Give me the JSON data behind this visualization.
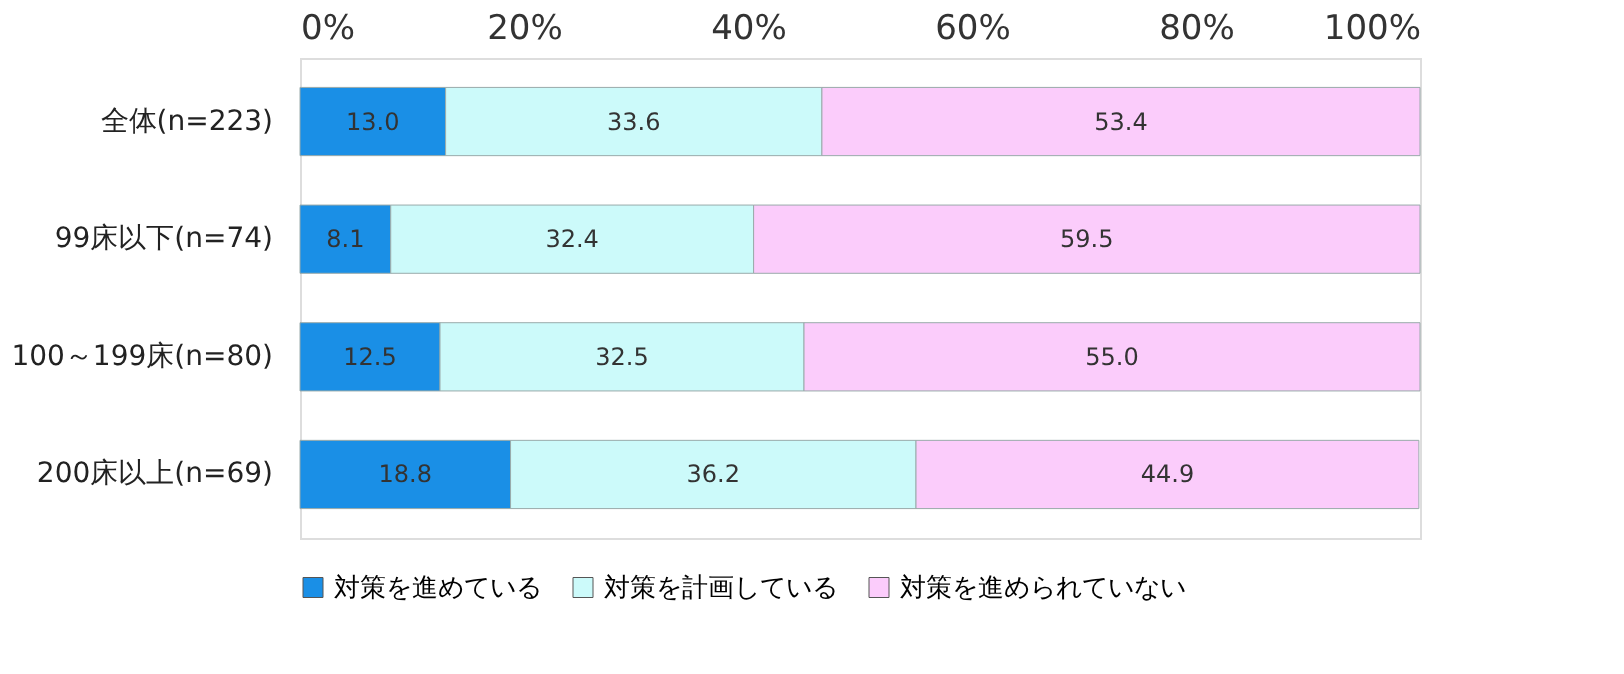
{
  "chart_data": {
    "type": "bar",
    "orientation": "horizontal",
    "stacked": true,
    "categories": [
      "全体(n=223)",
      "99床以下(n=74)",
      "100～199床(n=80)",
      "200床以上(n=69)"
    ],
    "series": [
      {
        "name": "対策を進めている",
        "color": "#1a8fe6",
        "values": [
          13.0,
          8.1,
          12.5,
          18.8
        ],
        "value_labels": [
          "13.0",
          "8.1",
          "12.5",
          "18.8"
        ]
      },
      {
        "name": "対策を計画している",
        "color": "#ccfafa",
        "values": [
          33.6,
          32.4,
          32.5,
          36.2
        ],
        "value_labels": [
          "33.6",
          "32.4",
          "32.5",
          "36.2"
        ]
      },
      {
        "name": "対策を進められていない",
        "color": "#fbccfb",
        "values": [
          53.4,
          59.5,
          55.0,
          44.9
        ],
        "value_labels": [
          "53.4",
          "59.5",
          "55.0",
          "44.9"
        ]
      }
    ],
    "xlim": [
      0,
      100
    ],
    "xticks": [
      {
        "value": 0,
        "label": "0%"
      },
      {
        "value": 20,
        "label": "20%"
      },
      {
        "value": 40,
        "label": "40%"
      },
      {
        "value": 60,
        "label": "60%"
      },
      {
        "value": 80,
        "label": "80%"
      },
      {
        "value": 100,
        "label": "100%"
      }
    ],
    "legend": "bottom",
    "grid": false
  }
}
